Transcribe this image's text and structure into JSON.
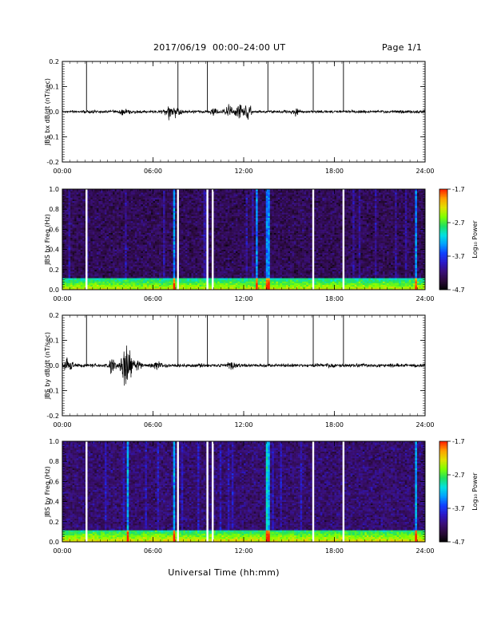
{
  "header": {
    "title": "2017/06/19  00:00–24:00 UT",
    "page": "Page 1/1"
  },
  "xlabel": "Universal Time (hh:mm)",
  "colors": {
    "trace": "#000000",
    "data_gap": "#ffffff",
    "colormap": [
      "#000000",
      "#2a0a3a",
      "#3a0f78",
      "#2a18c8",
      "#1040ff",
      "#00a0ff",
      "#00e0e0",
      "#20e060",
      "#80ff00",
      "#e0e000",
      "#ffa000",
      "#ff2000"
    ]
  },
  "chart_data": [
    {
      "type": "line",
      "ylabel": "JBS bx dB/dt (nT/sec)",
      "xlim": [
        0,
        24
      ],
      "ylim": [
        -0.2,
        0.2
      ],
      "x_ticks": [
        "00:00",
        "06:00",
        "12:00",
        "18:00",
        "24:00"
      ],
      "y_ticks": [
        "-0.2",
        "-0.1",
        "0.0",
        "0.1",
        "0.2"
      ],
      "y_tick_values": [
        -0.2,
        -0.1,
        0.0,
        0.1,
        0.2
      ],
      "baseline": 0.0,
      "noise_amplitude": 0.008,
      "events": [
        {
          "t": 4.1,
          "amp": 0.015
        },
        {
          "t": 7.0,
          "amp": 0.035
        },
        {
          "t": 7.6,
          "amp": 0.03
        },
        {
          "t": 10.0,
          "amp": 0.015
        },
        {
          "t": 11.0,
          "amp": 0.03
        },
        {
          "t": 11.7,
          "amp": 0.045
        },
        {
          "t": 12.3,
          "amp": 0.03
        },
        {
          "t": 15.4,
          "amp": 0.015
        }
      ],
      "gap_markers_hours": [
        1.6,
        7.65,
        9.6,
        13.6,
        16.6,
        18.6
      ]
    },
    {
      "type": "heatmap",
      "ylabel": "JBS bx Freq (Hz)",
      "xlim": [
        0,
        24
      ],
      "ylim": [
        0.0,
        1.0
      ],
      "x_ticks": [
        "00:00",
        "06:00",
        "12:00",
        "18:00",
        "24:00"
      ],
      "y_ticks": [
        "0.0",
        "0.2",
        "0.4",
        "0.6",
        "0.8",
        "1.0"
      ],
      "y_tick_values": [
        0.0,
        0.2,
        0.4,
        0.6,
        0.8,
        1.0
      ],
      "colorbar": {
        "label": "Log₁₀ Power",
        "ticks": [
          "-1.7",
          "-2.7",
          "-3.7",
          "-4.7"
        ],
        "tick_values": [
          -1.7,
          -2.7,
          -3.7,
          -4.7
        ],
        "range": [
          -4.7,
          -1.7
        ]
      },
      "background_level": -4.3,
      "low_freq_level": -3.0,
      "gap_columns_hours": [
        1.6,
        7.65,
        9.6,
        9.95,
        16.6,
        18.6
      ],
      "broadband_lines_hours": [
        7.45,
        12.9,
        13.6,
        23.4
      ]
    },
    {
      "type": "line",
      "ylabel": "JBS by dB/dt (nT/sec)",
      "xlim": [
        0,
        24
      ],
      "ylim": [
        -0.2,
        0.2
      ],
      "x_ticks": [
        "00:00",
        "06:00",
        "12:00",
        "18:00",
        "24:00"
      ],
      "y_ticks": [
        "-0.2",
        "-0.1",
        "0.0",
        "0.1",
        "0.2"
      ],
      "y_tick_values": [
        -0.2,
        -0.1,
        0.0,
        0.1,
        0.2
      ],
      "baseline": 0.0,
      "noise_amplitude": 0.01,
      "events": [
        {
          "t": 0.4,
          "amp": 0.04
        },
        {
          "t": 3.3,
          "amp": 0.04
        },
        {
          "t": 4.1,
          "amp": 0.08
        },
        {
          "t": 4.35,
          "amp": 0.12
        },
        {
          "t": 5.0,
          "amp": 0.025
        },
        {
          "t": 6.3,
          "amp": 0.02
        },
        {
          "t": 11.2,
          "amp": 0.02
        }
      ],
      "gap_markers_hours": [
        1.6,
        7.65,
        9.6,
        13.6,
        16.6,
        18.6
      ]
    },
    {
      "type": "heatmap",
      "ylabel": "JBS by Freq (Hz)",
      "xlim": [
        0,
        24
      ],
      "ylim": [
        0.0,
        1.0
      ],
      "x_ticks": [
        "00:00",
        "06:00",
        "12:00",
        "18:00",
        "24:00"
      ],
      "y_ticks": [
        "0.0",
        "0.2",
        "0.4",
        "0.6",
        "0.8",
        "1.0"
      ],
      "y_tick_values": [
        0.0,
        0.2,
        0.4,
        0.6,
        0.8,
        1.0
      ],
      "colorbar": {
        "label": "Log₁₀ Power",
        "ticks": [
          "-1.7",
          "-2.7",
          "-3.7",
          "-4.7"
        ],
        "tick_values": [
          -1.7,
          -2.7,
          -3.7,
          -4.7
        ],
        "range": [
          -4.7,
          -1.7
        ]
      },
      "background_level": -4.2,
      "low_freq_level": -2.9,
      "gap_columns_hours": [
        1.6,
        7.65,
        9.6,
        9.95,
        16.6,
        18.6
      ],
      "broadband_lines_hours": [
        4.3,
        7.45,
        13.6,
        23.4
      ]
    }
  ]
}
